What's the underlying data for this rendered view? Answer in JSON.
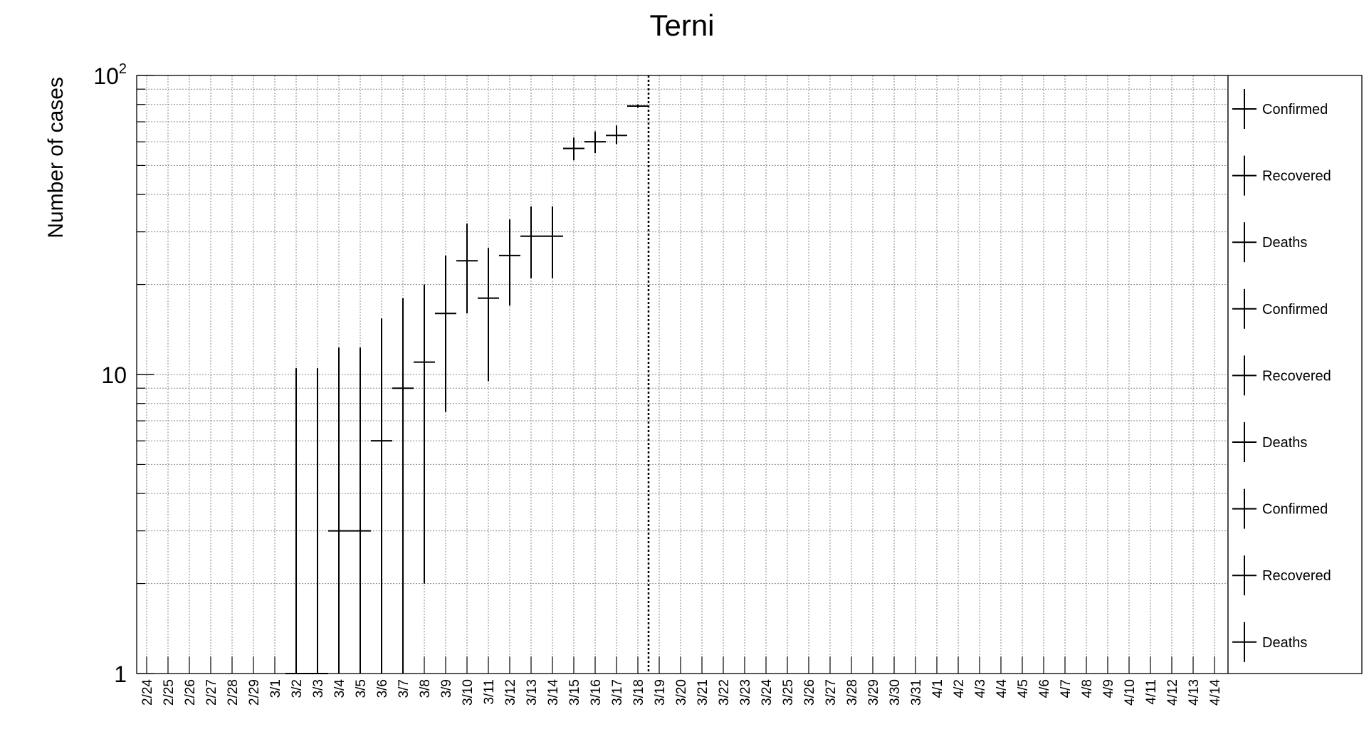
{
  "chart_data": {
    "type": "scatter",
    "title": "Terni",
    "ylabel": "Number of cases",
    "xlabel": "",
    "yscale": "log",
    "ylim": [
      1,
      100
    ],
    "grid": true,
    "legend_position": "right",
    "categories": [
      "2/24",
      "2/25",
      "2/26",
      "2/27",
      "2/28",
      "2/29",
      "3/1",
      "3/2",
      "3/3",
      "3/4",
      "3/5",
      "3/6",
      "3/7",
      "3/8",
      "3/9",
      "3/10",
      "3/11",
      "3/12",
      "3/13",
      "3/14",
      "3/15",
      "3/16",
      "3/17",
      "3/18",
      "3/19",
      "3/20",
      "3/21",
      "3/22",
      "3/23",
      "3/24",
      "3/25",
      "3/26",
      "3/27",
      "3/28",
      "3/29",
      "3/30",
      "3/31",
      "4/1",
      "4/2",
      "4/3",
      "4/4",
      "4/5",
      "4/6",
      "4/7",
      "4/8",
      "4/9",
      "4/10",
      "4/11",
      "4/12",
      "4/13",
      "4/14"
    ],
    "y_ticks": [
      {
        "value": 1,
        "label": "1"
      },
      {
        "value": 10,
        "label": "10"
      },
      {
        "value": 100,
        "label_base": "10",
        "label_exp": "2"
      }
    ],
    "reference_line": {
      "category": "3/18",
      "style": "dotted"
    },
    "series": [
      {
        "name": "Confirmed",
        "points": [
          {
            "x": "3/2",
            "y": 1,
            "err_high": 10.5
          },
          {
            "x": "3/3",
            "y": 1,
            "err_high": 10.5
          },
          {
            "x": "3/4",
            "y": 3,
            "err_low": 1,
            "err_high": 12.3
          },
          {
            "x": "3/5",
            "y": 3,
            "err_low": 1,
            "err_high": 12.3
          },
          {
            "x": "3/6",
            "y": 6,
            "err_low": 1,
            "err_high": 15.4
          },
          {
            "x": "3/7",
            "y": 9,
            "err_low": 1,
            "err_high": 18
          },
          {
            "x": "3/8",
            "y": 11,
            "err_low": 2,
            "err_high": 20
          },
          {
            "x": "3/9",
            "y": 16,
            "err_low": 7.5,
            "err_high": 25
          },
          {
            "x": "3/10",
            "y": 24,
            "err_low": 16,
            "err_high": 32
          },
          {
            "x": "3/11",
            "y": 18,
            "err_low": 9.5,
            "err_high": 26.5
          },
          {
            "x": "3/12",
            "y": 25,
            "err_low": 17,
            "err_high": 33
          },
          {
            "x": "3/13",
            "y": 29,
            "err_low": 21,
            "err_high": 36.5
          },
          {
            "x": "3/14",
            "y": 29,
            "err_low": 21,
            "err_high": 36.5
          },
          {
            "x": "3/15",
            "y": 57,
            "err_low": 52,
            "err_high": 62
          },
          {
            "x": "3/16",
            "y": 60,
            "err_low": 55,
            "err_high": 65
          },
          {
            "x": "3/17",
            "y": 63,
            "err_low": 59,
            "err_high": 68
          },
          {
            "x": "3/18",
            "y": 79,
            "err_low": 78,
            "err_high": 80
          }
        ]
      }
    ]
  },
  "legend": {
    "entries": [
      "Confirmed",
      "Recovered",
      "Deaths",
      "Confirmed",
      "Recovered",
      "Deaths",
      "Confirmed",
      "Recovered",
      "Deaths"
    ]
  }
}
